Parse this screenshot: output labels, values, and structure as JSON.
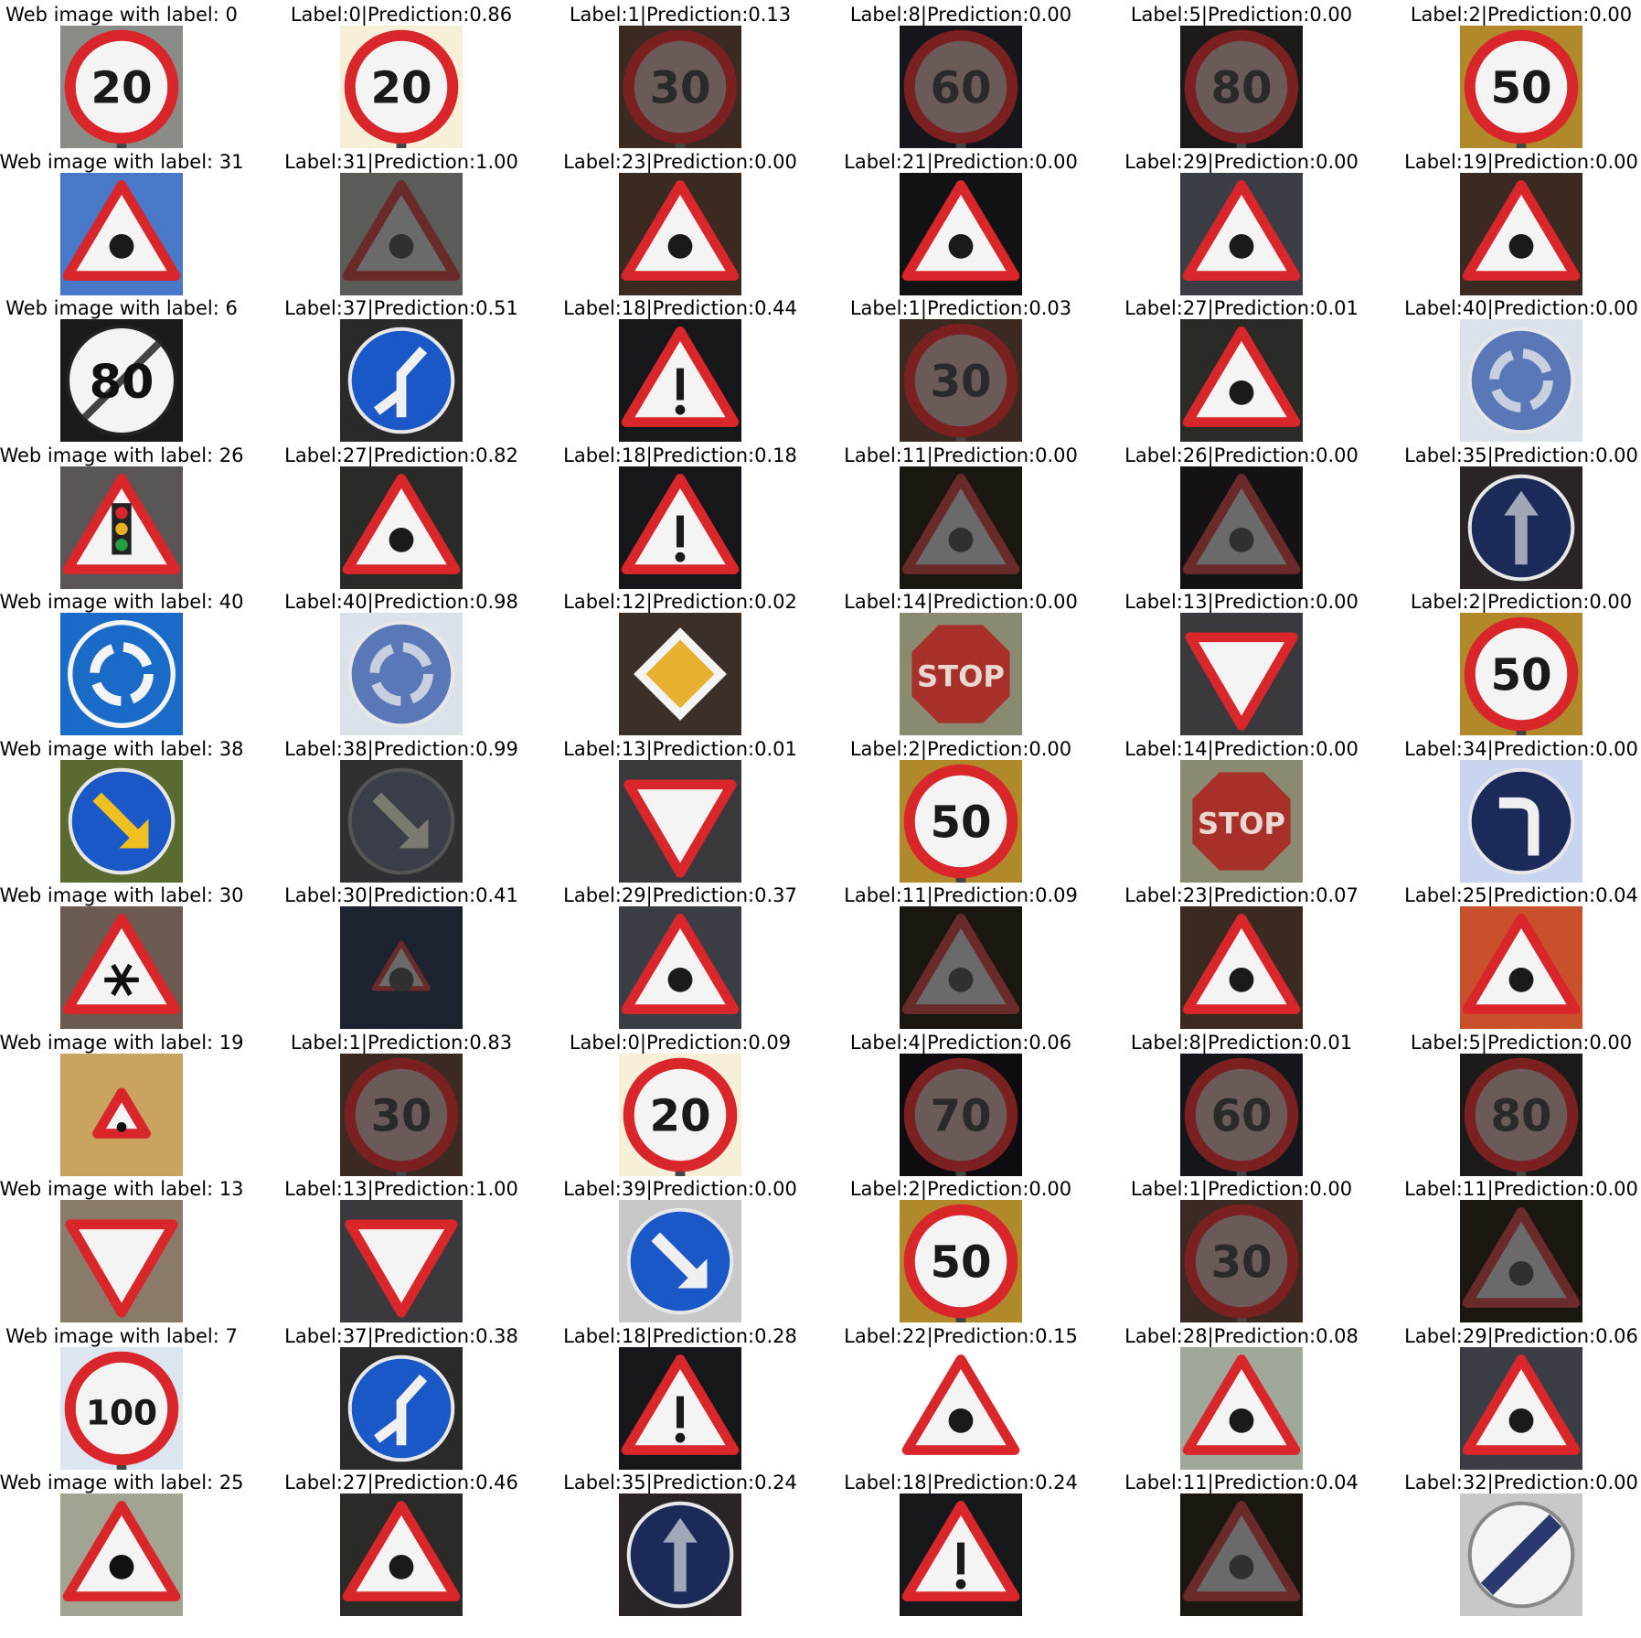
{
  "figure": {
    "rows": [
      {
        "web_label": "Web image with label: 0",
        "web_sign": "speed-20",
        "web_bg": "#8a8c88",
        "predictions": [
          {
            "label": "Label:0|Prediction:0.86",
            "sign": "speed-20",
            "bg": "#f6f0d8"
          },
          {
            "label": "Label:1|Prediction:0.13",
            "sign": "speed-30",
            "bg": "#3a2a22"
          },
          {
            "label": "Label:8|Prediction:0.00",
            "sign": "speed-dark",
            "bg": "#14161c"
          },
          {
            "label": "Label:5|Prediction:0.00",
            "sign": "speed-80",
            "bg": "#1c1a18"
          },
          {
            "label": "Label:2|Prediction:0.00",
            "sign": "speed-50",
            "bg": "#b08a2a"
          }
        ]
      },
      {
        "web_label": "Web image with label: 31",
        "web_sign": "warning-animal",
        "web_bg": "#4a78c8",
        "predictions": [
          {
            "label": "Label:31|Prediction:1.00",
            "sign": "warning-dim",
            "bg": "#5a5c58"
          },
          {
            "label": "Label:23|Prediction:0.00",
            "sign": "warning-car",
            "bg": "#3a2a20"
          },
          {
            "label": "Label:21|Prediction:0.00",
            "sign": "warning-curve",
            "bg": "#101214"
          },
          {
            "label": "Label:29|Prediction:0.00",
            "sign": "warning-bike",
            "bg": "#3a3e44"
          },
          {
            "label": "Label:19|Prediction:0.00",
            "sign": "warning-curve",
            "bg": "#3a2a22"
          }
        ]
      },
      {
        "web_label": "Web image with label: 6",
        "web_sign": "end-80",
        "web_bg": "#1a1a1a",
        "predictions": [
          {
            "label": "Label:37|Prediction:0.51",
            "sign": "blue-split",
            "bg": "#2a2a2a"
          },
          {
            "label": "Label:18|Prediction:0.44",
            "sign": "warning-excl",
            "bg": "#15171a"
          },
          {
            "label": "Label:1|Prediction:0.03",
            "sign": "speed-30",
            "bg": "#3a2a22"
          },
          {
            "label": "Label:27|Prediction:0.01",
            "sign": "warning-ped",
            "bg": "#2a2a26"
          },
          {
            "label": "Label:40|Prediction:0.00",
            "sign": "blue-round",
            "bg": "#dce2ea"
          }
        ]
      },
      {
        "web_label": "Web image with label: 26",
        "web_sign": "warning-light",
        "web_bg": "#5a5656",
        "predictions": [
          {
            "label": "Label:27|Prediction:0.82",
            "sign": "warning-ped",
            "bg": "#2a2a26"
          },
          {
            "label": "Label:18|Prediction:0.18",
            "sign": "warning-excl",
            "bg": "#15171a"
          },
          {
            "label": "Label:11|Prediction:0.00",
            "sign": "warning-dark",
            "bg": "#1a1610"
          },
          {
            "label": "Label:26|Prediction:0.00",
            "sign": "warning-dark2",
            "bg": "#141214"
          },
          {
            "label": "Label:35|Prediction:0.00",
            "sign": "blue-ahead",
            "bg": "#2a2426"
          }
        ]
      },
      {
        "web_label": "Web image with label: 40",
        "web_sign": "blue-round-web",
        "web_bg": "#1a6ac8",
        "predictions": [
          {
            "label": "Label:40|Prediction:0.98",
            "sign": "blue-round",
            "bg": "#dce2ea"
          },
          {
            "label": "Label:12|Prediction:0.02",
            "sign": "priority",
            "bg": "#3a3028"
          },
          {
            "label": "Label:14|Prediction:0.00",
            "sign": "stop",
            "bg": "#8a8a70"
          },
          {
            "label": "Label:13|Prediction:0.00",
            "sign": "yield",
            "bg": "#3a3a3e"
          },
          {
            "label": "Label:2|Prediction:0.00",
            "sign": "speed-50",
            "bg": "#b08a2a"
          }
        ]
      },
      {
        "web_label": "Web image with label: 38",
        "web_sign": "blue-keep-right",
        "web_bg": "#5a6a30",
        "predictions": [
          {
            "label": "Label:38|Prediction:0.99",
            "sign": "blue-keep-right-dim",
            "bg": "#2e3034"
          },
          {
            "label": "Label:13|Prediction:0.01",
            "sign": "yield",
            "bg": "#3a3a3e"
          },
          {
            "label": "Label:2|Prediction:0.00",
            "sign": "speed-50",
            "bg": "#b08a2a"
          },
          {
            "label": "Label:14|Prediction:0.00",
            "sign": "stop",
            "bg": "#8a8a70"
          },
          {
            "label": "Label:34|Prediction:0.00",
            "sign": "blue-turn-left",
            "bg": "#c8d4f0"
          }
        ]
      },
      {
        "web_label": "Web image with label: 30",
        "web_sign": "warning-snow",
        "web_bg": "#6a5a50",
        "predictions": [
          {
            "label": "Label:30|Prediction:0.41",
            "sign": "warning-small",
            "bg": "#1c2230"
          },
          {
            "label": "Label:29|Prediction:0.37",
            "sign": "warning-bike",
            "bg": "#3a3e44"
          },
          {
            "label": "Label:11|Prediction:0.09",
            "sign": "warning-dark",
            "bg": "#1a1610"
          },
          {
            "label": "Label:23|Prediction:0.07",
            "sign": "warning-car",
            "bg": "#3a2a20"
          },
          {
            "label": "Label:25|Prediction:0.04",
            "sign": "warning-work",
            "bg": "#c8502a"
          }
        ]
      },
      {
        "web_label": "Web image with label: 19",
        "web_sign": "warning-curve-web",
        "web_bg": "#c8a460",
        "predictions": [
          {
            "label": "Label:1|Prediction:0.83",
            "sign": "speed-30",
            "bg": "#3a2a22"
          },
          {
            "label": "Label:0|Prediction:0.09",
            "sign": "speed-20",
            "bg": "#f6f0d8"
          },
          {
            "label": "Label:4|Prediction:0.06",
            "sign": "speed-70-dark",
            "bg": "#0e0c10"
          },
          {
            "label": "Label:8|Prediction:0.01",
            "sign": "speed-dark",
            "bg": "#14161c"
          },
          {
            "label": "Label:5|Prediction:0.00",
            "sign": "speed-80",
            "bg": "#1c1a18"
          }
        ]
      },
      {
        "web_label": "Web image with label: 13",
        "web_sign": "yield-web",
        "web_bg": "#8a7a6a",
        "predictions": [
          {
            "label": "Label:13|Prediction:1.00",
            "sign": "yield",
            "bg": "#3a3a3e"
          },
          {
            "label": "Label:39|Prediction:0.00",
            "sign": "blue-keep-left",
            "bg": "#c8c8c8"
          },
          {
            "label": "Label:2|Prediction:0.00",
            "sign": "speed-50",
            "bg": "#b08a2a"
          },
          {
            "label": "Label:1|Prediction:0.00",
            "sign": "speed-30",
            "bg": "#3a2a22"
          },
          {
            "label": "Label:11|Prediction:0.00",
            "sign": "warning-dark",
            "bg": "#1a1610"
          }
        ]
      },
      {
        "web_label": "Web image with label: 7",
        "web_sign": "speed-100",
        "web_bg": "#dce6f0",
        "predictions": [
          {
            "label": "Label:37|Prediction:0.38",
            "sign": "blue-split",
            "bg": "#2a2a2a"
          },
          {
            "label": "Label:18|Prediction:0.28",
            "sign": "warning-excl",
            "bg": "#15171a"
          },
          {
            "label": "Label:22|Prediction:0.15",
            "sign": "warning-bumpy",
            "bg": "#ffffff"
          },
          {
            "label": "Label:28|Prediction:0.08",
            "sign": "warning-children",
            "bg": "#a0a89a"
          },
          {
            "label": "Label:29|Prediction:0.06",
            "sign": "warning-bike",
            "bg": "#3a3e44"
          }
        ]
      },
      {
        "web_label": "Web image with label: 25",
        "web_sign": "warning-work-web",
        "web_bg": "#a0a490",
        "predictions": [
          {
            "label": "Label:27|Prediction:0.46",
            "sign": "warning-ped",
            "bg": "#2a2a26"
          },
          {
            "label": "Label:35|Prediction:0.24",
            "sign": "blue-ahead",
            "bg": "#2a2426"
          },
          {
            "label": "Label:18|Prediction:0.24",
            "sign": "warning-excl",
            "bg": "#15171a"
          },
          {
            "label": "Label:11|Prediction:0.04",
            "sign": "warning-dark",
            "bg": "#1a1610"
          },
          {
            "label": "Label:32|Prediction:0.00",
            "sign": "end-restriction",
            "bg": "#c8c8c8"
          }
        ]
      }
    ]
  }
}
